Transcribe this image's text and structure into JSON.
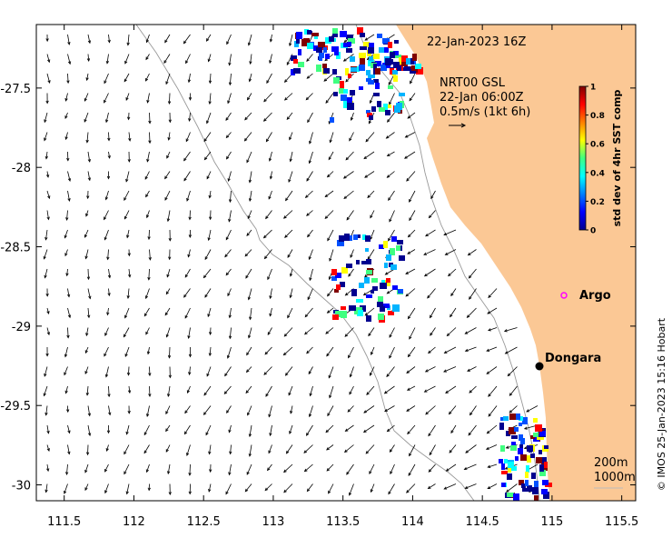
{
  "map": {
    "title_time": "22-Jan-2023 16Z",
    "current_product": "NRT00 GSL",
    "current_time": "22-Jan 06:00Z",
    "vector_scale": "0.5m/s (1kt 6h)",
    "isobath_labels": [
      "200m",
      "1000m"
    ],
    "credit": "© IMOS 25-Jan-2023 15:16 Hobart",
    "lon_range": [
      111.3,
      115.6
    ],
    "lat_range": [
      -30.1,
      -27.1
    ],
    "lon_ticks": [
      111.5,
      112,
      112.5,
      113,
      113.5,
      114,
      114.5,
      115,
      115.5
    ],
    "lon_tick_labels": [
      "111.5",
      "112",
      "112.5",
      "113",
      "113.5",
      "114",
      "114.5",
      "115",
      "115.5"
    ],
    "lat_ticks": [
      -27.5,
      -28,
      -28.5,
      -29,
      -29.5,
      -30
    ],
    "lat_tick_labels": [
      "-27.5",
      "-28",
      "-28.5",
      "-29",
      "-29.5",
      "-30"
    ],
    "places": [
      {
        "name": "Argo",
        "lon": 115.05,
        "lat": -28.82,
        "marker": "circle-magenta"
      },
      {
        "name": "Dongara",
        "lon": 114.92,
        "lat": -29.25,
        "marker": "dot-black"
      }
    ],
    "land_color": "#fbc895"
  },
  "colorbar": {
    "label": "std dev of 4hr SST comp",
    "ticks": [
      0,
      0.2,
      0.4,
      0.6,
      0.8,
      1
    ],
    "tick_labels": [
      "0",
      "0.2",
      "0.4",
      "0.6",
      "0.8",
      "1"
    ],
    "colormap": "jet"
  }
}
